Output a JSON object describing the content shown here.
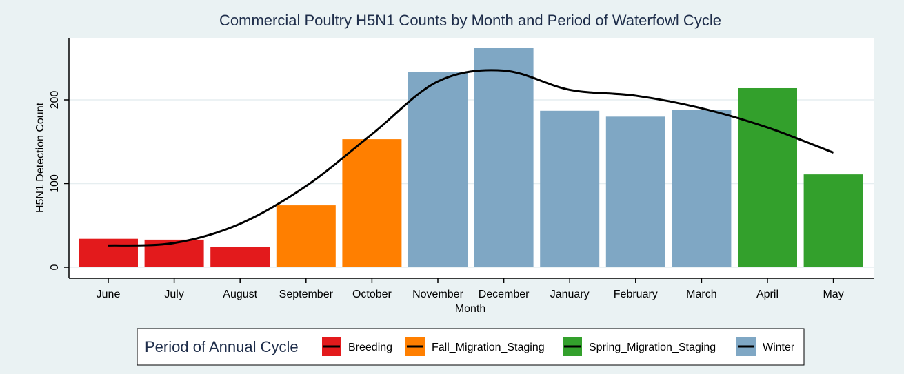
{
  "chart_data": {
    "type": "bar",
    "title": "Commercial Poultry H5N1 Counts by Month and Period of Waterfowl Cycle",
    "xlabel": "Month",
    "ylabel": "H5N1 Detection Count",
    "ylim": [
      0,
      265
    ],
    "yticks": [
      0,
      100,
      200
    ],
    "grid": true,
    "categories": [
      "June",
      "July",
      "August",
      "September",
      "October",
      "November",
      "December",
      "January",
      "February",
      "March",
      "April",
      "May"
    ],
    "values": [
      34,
      33,
      24,
      74,
      153,
      233,
      262,
      187,
      180,
      188,
      214,
      111
    ],
    "period": [
      "Breeding",
      "Breeding",
      "Breeding",
      "Fall_Migration_Staging",
      "Fall_Migration_Staging",
      "Winter",
      "Winter",
      "Winter",
      "Winter",
      "Winter",
      "Spring_Migration_Staging",
      "Spring_Migration_Staging"
    ],
    "trend_line": [
      26,
      29,
      52,
      97,
      159,
      222,
      235,
      212,
      205,
      190,
      167,
      137
    ],
    "legend": {
      "title": "Period of Annual Cycle",
      "placement": "bottom",
      "entries": [
        {
          "name": "Breeding",
          "color": "#e31a1c"
        },
        {
          "name": "Fall_Migration_Staging",
          "color": "#ff7f00"
        },
        {
          "name": "Spring_Migration_Staging",
          "color": "#33a02c"
        },
        {
          "name": "Winter",
          "color": "#7fa7c4"
        }
      ]
    },
    "colors": {
      "Breeding": "#e31a1c",
      "Fall_Migration_Staging": "#ff7f00",
      "Spring_Migration_Staging": "#33a02c",
      "Winter": "#7fa7c4",
      "trend": "#000000"
    }
  }
}
